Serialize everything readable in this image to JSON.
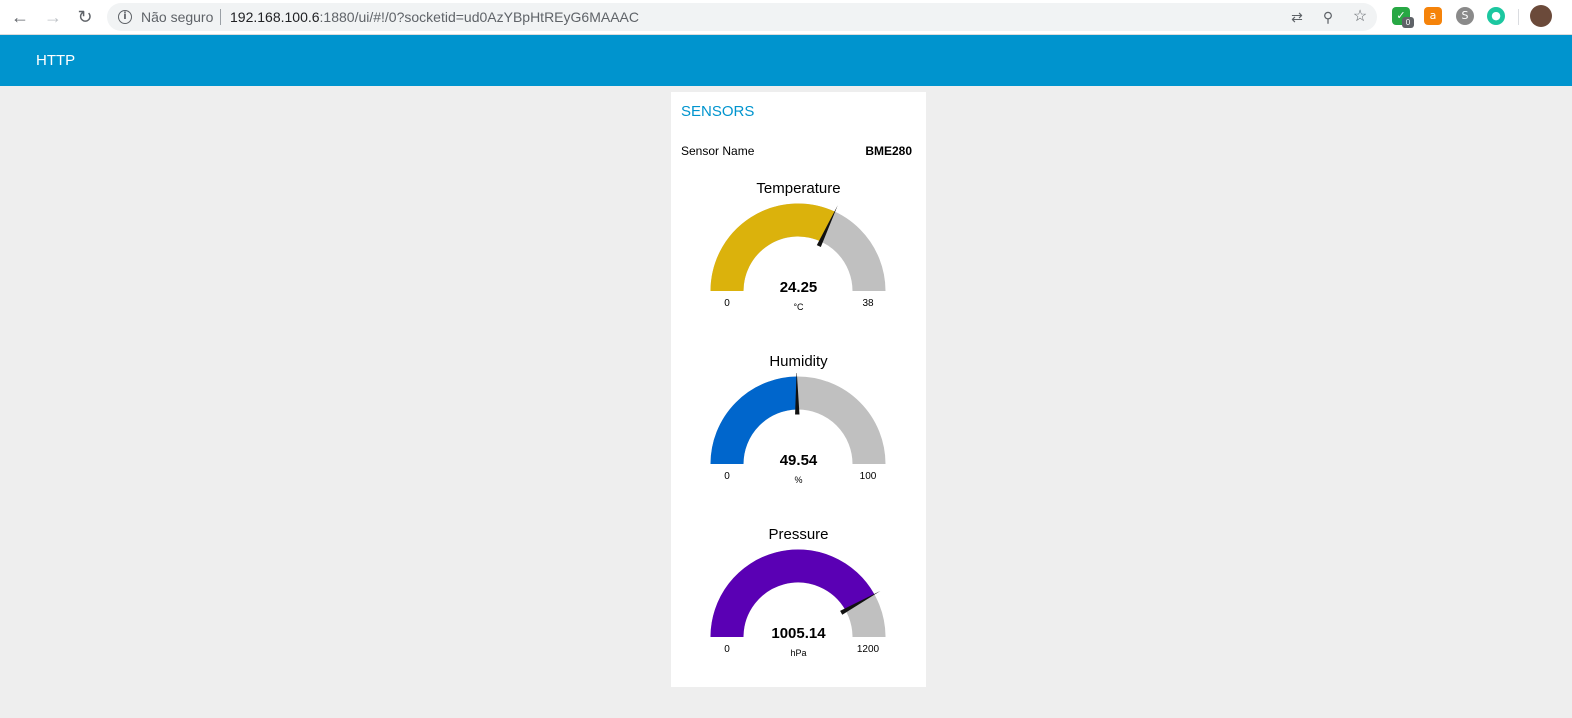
{
  "browser": {
    "security_text": "Não seguro",
    "url_host": "192.168.100.6",
    "url_rest": ":1880/ui/#!/0?socketid=ud0AzYBpHtREyG6MAAAC",
    "ext_badge": "0",
    "icons": [
      "back-icon",
      "forward-icon",
      "reload-icon",
      "info-icon",
      "translate-icon",
      "zoom-icon",
      "star-icon"
    ]
  },
  "appbar": {
    "title": "HTTP"
  },
  "card": {
    "title": "SENSORS",
    "sensor_label": "Sensor Name",
    "sensor_value": "BME280"
  },
  "gauges": [
    {
      "title": "Temperature",
      "value": 24.25,
      "value_text": "24.25",
      "unit": "°C",
      "min": 0,
      "max": 38,
      "min_text": "0",
      "max_text": "38",
      "color": "#dbb20c",
      "track": "#c0c0c0"
    },
    {
      "title": "Humidity",
      "value": 49.54,
      "value_text": "49.54",
      "unit": "%",
      "min": 0,
      "max": 100,
      "min_text": "0",
      "max_text": "100",
      "color": "#0066cc",
      "track": "#c0c0c0"
    },
    {
      "title": "Pressure",
      "value": 1005.14,
      "value_text": "1005.14",
      "unit": "hPa",
      "min": 0,
      "max": 1200,
      "min_text": "0",
      "max_text": "1200",
      "color": "#5a00b4",
      "track": "#c0c0c0"
    }
  ]
}
